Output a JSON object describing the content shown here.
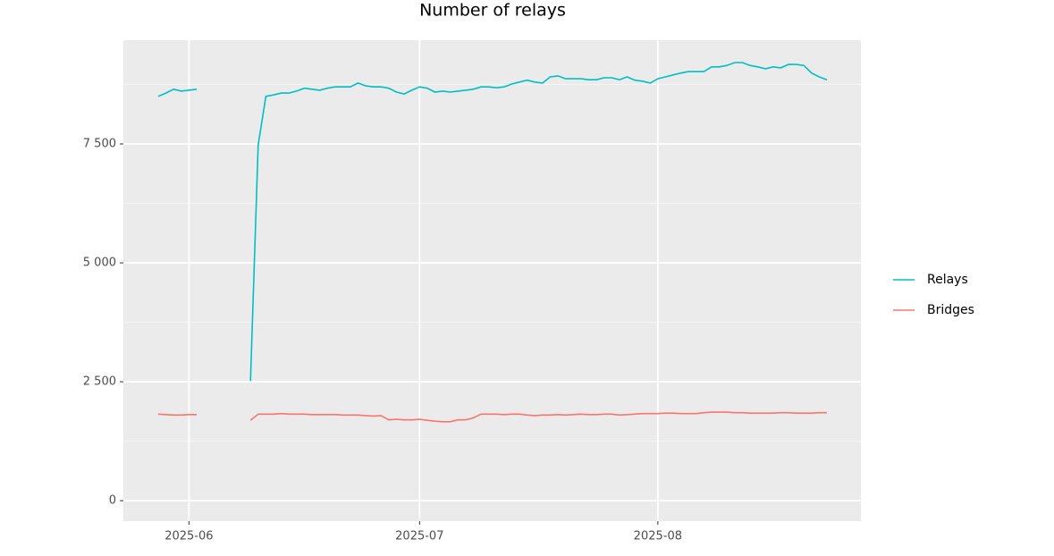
{
  "chart_data": {
    "type": "line",
    "title": "Number of relays",
    "categories": [
      null,
      null,
      null,
      null,
      "2025-06",
      null,
      null,
      null,
      null,
      null,
      null,
      null,
      null,
      null,
      null,
      null,
      null,
      null,
      null,
      null,
      null,
      null,
      null,
      null,
      null,
      null,
      null,
      null,
      null,
      null,
      null,
      null,
      null,
      null,
      "2025-07",
      null,
      null,
      null,
      null,
      null,
      null,
      null,
      null,
      null,
      null,
      null,
      null,
      null,
      null,
      null,
      null,
      null,
      null,
      null,
      null,
      null,
      null,
      null,
      null,
      null,
      null,
      null,
      null,
      null,
      null,
      "2025-08",
      null,
      null,
      null,
      null,
      null,
      null,
      null,
      null,
      null,
      null,
      null,
      null,
      null,
      null,
      null,
      null,
      null,
      null,
      null,
      null,
      null,
      null
    ],
    "series": [
      {
        "name": "Relays",
        "color": "#00bfc4",
        "values": [
          8500,
          8570,
          8650,
          8610,
          8630,
          8650,
          null,
          null,
          null,
          null,
          null,
          null,
          2520,
          7480,
          8500,
          8530,
          8570,
          8570,
          8610,
          8670,
          8650,
          8630,
          8670,
          8700,
          8700,
          8700,
          8780,
          8720,
          8700,
          8700,
          8670,
          8590,
          8550,
          8630,
          8700,
          8670,
          8590,
          8610,
          8590,
          8610,
          8630,
          8650,
          8700,
          8700,
          8680,
          8700,
          8760,
          8800,
          8840,
          8800,
          8780,
          8910,
          8930,
          8870,
          8870,
          8870,
          8850,
          8850,
          8890,
          8890,
          8850,
          8910,
          8840,
          8820,
          8780,
          8870,
          8910,
          8950,
          8990,
          9020,
          9020,
          9020,
          9120,
          9120,
          9150,
          9210,
          9210,
          9150,
          9120,
          9080,
          9120,
          9100,
          9170,
          9170,
          9150,
          8990,
          8910,
          8850
        ]
      },
      {
        "name": "Bridges",
        "color": "#f8766d",
        "values": [
          1820,
          1810,
          1800,
          1800,
          1810,
          1810,
          null,
          null,
          null,
          null,
          null,
          null,
          1690,
          1820,
          1820,
          1820,
          1830,
          1820,
          1820,
          1820,
          1810,
          1810,
          1810,
          1810,
          1800,
          1800,
          1800,
          1790,
          1780,
          1790,
          1700,
          1710,
          1700,
          1700,
          1710,
          1690,
          1670,
          1660,
          1660,
          1700,
          1700,
          1740,
          1820,
          1820,
          1820,
          1810,
          1820,
          1820,
          1800,
          1790,
          1800,
          1800,
          1810,
          1800,
          1810,
          1820,
          1810,
          1810,
          1820,
          1820,
          1800,
          1810,
          1820,
          1830,
          1830,
          1830,
          1840,
          1840,
          1830,
          1830,
          1830,
          1850,
          1860,
          1860,
          1860,
          1850,
          1850,
          1840,
          1840,
          1840,
          1840,
          1850,
          1850,
          1840,
          1840,
          1840,
          1850,
          1850
        ]
      }
    ],
    "ylim": [
      -430,
      9680
    ],
    "yticks": [
      0,
      {
        "value": 2500,
        "label": "2 500"
      },
      {
        "value": 5000,
        "label": "5 000"
      },
      {
        "value": 7500,
        "label": "7 500"
      }
    ],
    "grid": true,
    "legend": "right"
  }
}
